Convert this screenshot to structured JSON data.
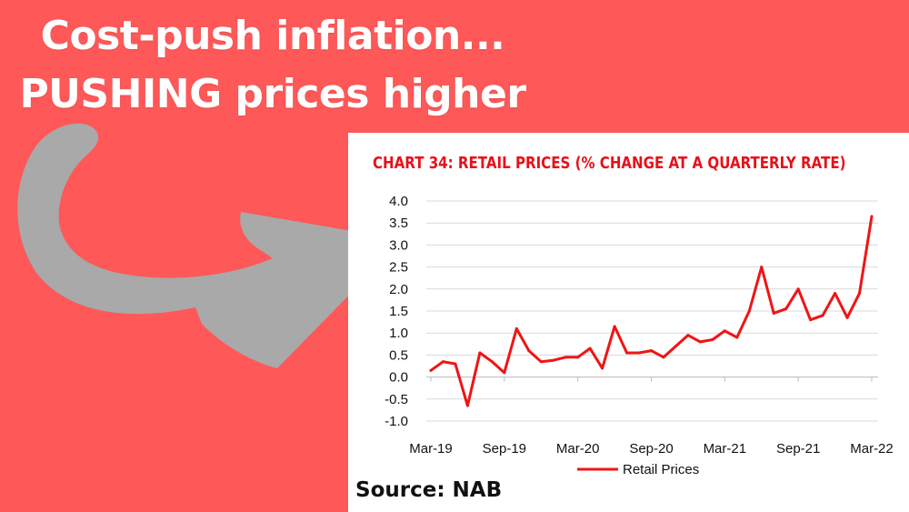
{
  "headline": {
    "line1": "Cost-push inflation...",
    "line2": "PUSHING prices higher"
  },
  "arrow_color": "#a9a9a9",
  "source": "Source: NAB",
  "chart_data": {
    "type": "line",
    "title": "CHART 34: RETAIL PRICES (% CHANGE AT A QUARTERLY RATE)",
    "title_color": "#e8101a",
    "line_color": "#f01414",
    "xlabel": "",
    "ylabel": "",
    "ylim": [
      -1.0,
      4.0
    ],
    "yticks": [
      "4.0",
      "3.5",
      "3.0",
      "2.5",
      "2.0",
      "1.5",
      "1.0",
      "0.5",
      "0.0",
      "-0.5",
      "-1.0"
    ],
    "ytick_values": [
      4.0,
      3.5,
      3.0,
      2.5,
      2.0,
      1.5,
      1.0,
      0.5,
      0.0,
      -0.5,
      -1.0
    ],
    "xticks": [
      "Mar-19",
      "Sep-19",
      "Mar-20",
      "Sep-20",
      "Mar-21",
      "Sep-21",
      "Mar-22"
    ],
    "grid": true,
    "legend_position": "bottom",
    "series": [
      {
        "name": "Retail Prices",
        "values": [
          0.15,
          0.35,
          0.3,
          -0.65,
          0.55,
          0.35,
          0.1,
          1.1,
          0.6,
          0.35,
          0.38,
          0.45,
          0.45,
          0.65,
          0.2,
          1.15,
          0.55,
          0.55,
          0.6,
          0.45,
          0.7,
          0.95,
          0.8,
          0.85,
          1.05,
          0.9,
          1.5,
          2.5,
          1.45,
          1.55,
          2.0,
          1.3,
          1.4,
          1.9,
          1.35,
          1.9,
          3.65
        ]
      }
    ]
  }
}
